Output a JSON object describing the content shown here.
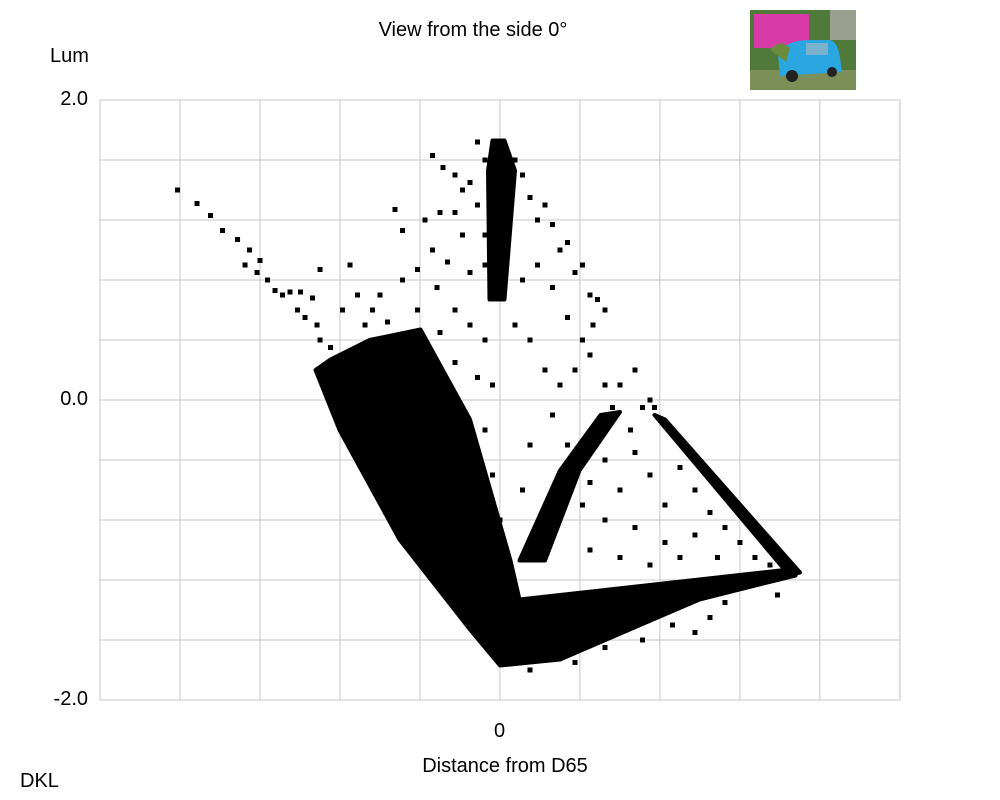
{
  "chart_data": {
    "type": "scatter",
    "title": "View from the side 0°",
    "ylabel": "Lum",
    "xlabel": "Distance from D65",
    "corner_label": "DKL",
    "xlim": [
      -2.667,
      2.667
    ],
    "ylim": [
      -2.0,
      2.0
    ],
    "x_grid_step": 0.5333,
    "y_grid_step": 0.4,
    "grid": true,
    "x_ticks": [
      {
        "value": 0,
        "label": "0"
      }
    ],
    "y_ticks": [
      {
        "value": 2.0,
        "label": "2.0"
      },
      {
        "value": 0.0,
        "label": "0.0"
      },
      {
        "value": -2.0,
        "label": "-2.0"
      }
    ],
    "marker_color": "#000000",
    "grid_color": "#c8c8c8",
    "dense_regions": [
      [
        [
          -1.13,
          0.27
        ],
        [
          -0.87,
          0.4
        ],
        [
          -0.53,
          0.47
        ],
        [
          -0.2,
          -0.13
        ],
        [
          0.07,
          -1.07
        ],
        [
          0.13,
          -1.33
        ],
        [
          0.67,
          -1.27
        ],
        [
          1.93,
          -1.13
        ],
        [
          1.97,
          -1.17
        ],
        [
          1.33,
          -1.33
        ],
        [
          0.4,
          -1.73
        ],
        [
          0,
          -1.77
        ],
        [
          -0.2,
          -1.53
        ],
        [
          -0.67,
          -0.93
        ],
        [
          -1.07,
          -0.2
        ],
        [
          -1.23,
          0.2
        ]
      ],
      [
        [
          0.13,
          -1.07
        ],
        [
          0.4,
          -0.47
        ],
        [
          0.67,
          -0.1
        ],
        [
          0.8,
          -0.08
        ],
        [
          0.53,
          -0.47
        ],
        [
          0.3,
          -1.07
        ]
      ],
      [
        [
          1.03,
          -0.1
        ],
        [
          1.1,
          -0.13
        ],
        [
          2.0,
          -1.15
        ],
        [
          1.93,
          -1.17
        ]
      ],
      [
        [
          -0.05,
          1.73
        ],
        [
          0.03,
          1.73
        ],
        [
          0.1,
          1.53
        ],
        [
          0.03,
          0.67
        ],
        [
          -0.07,
          0.67
        ],
        [
          -0.08,
          1.53
        ]
      ]
    ],
    "points": [
      [
        -2.15,
        1.4
      ],
      [
        -2.02,
        1.31
      ],
      [
        -1.93,
        1.23
      ],
      [
        -1.85,
        1.13
      ],
      [
        -1.75,
        1.07
      ],
      [
        -1.67,
        1.0
      ],
      [
        -1.6,
        0.93
      ],
      [
        -1.7,
        0.9
      ],
      [
        -1.55,
        0.8
      ],
      [
        -1.5,
        0.73
      ],
      [
        -1.45,
        0.7
      ],
      [
        -1.33,
        0.72
      ],
      [
        -1.35,
        0.6
      ],
      [
        -1.3,
        0.55
      ],
      [
        -1.22,
        0.5
      ],
      [
        -1.2,
        0.4
      ],
      [
        -1.13,
        0.35
      ],
      [
        -1.05,
        0.3
      ],
      [
        -1.25,
        0.68
      ],
      [
        -1.4,
        0.72
      ],
      [
        -1.62,
        0.85
      ],
      [
        -1.2,
        0.87
      ],
      [
        -1.0,
        0.9
      ],
      [
        -0.8,
        0.7
      ],
      [
        -0.75,
        0.52
      ],
      [
        -0.9,
        0.5
      ],
      [
        -0.65,
        0.8
      ],
      [
        -0.55,
        0.87
      ],
      [
        -0.45,
        1.0
      ],
      [
        -0.35,
        0.92
      ],
      [
        -0.25,
        1.1
      ],
      [
        -0.2,
        0.85
      ],
      [
        -0.15,
        1.3
      ],
      [
        -0.3,
        1.25
      ],
      [
        -0.4,
        1.25
      ],
      [
        -0.7,
        1.27
      ],
      [
        -0.65,
        1.13
      ],
      [
        -0.5,
        1.2
      ],
      [
        -0.55,
        0.6
      ],
      [
        -0.42,
        0.75
      ],
      [
        -0.3,
        0.6
      ],
      [
        -0.2,
        0.5
      ],
      [
        -0.1,
        0.4
      ],
      [
        -0.1,
        0.9
      ],
      [
        -0.2,
        1.45
      ],
      [
        -0.3,
        1.5
      ],
      [
        -0.1,
        1.6
      ],
      [
        -0.05,
        1.7
      ],
      [
        -0.15,
        1.72
      ],
      [
        -0.45,
        1.63
      ],
      [
        -0.38,
        1.55
      ],
      [
        -0.25,
        1.4
      ],
      [
        -0.1,
        1.1
      ],
      [
        -1.05,
        0.6
      ],
      [
        -0.95,
        0.7
      ],
      [
        -0.85,
        0.6
      ],
      [
        -0.6,
        0.35
      ],
      [
        -0.4,
        0.45
      ],
      [
        -0.3,
        0.25
      ],
      [
        -0.15,
        0.15
      ],
      [
        -0.05,
        0.1
      ],
      [
        -0.1,
        -0.2
      ],
      [
        -0.05,
        -0.5
      ],
      [
        0.0,
        -0.8
      ],
      [
        0.1,
        1.6
      ],
      [
        0.15,
        1.5
      ],
      [
        0.2,
        1.35
      ],
      [
        0.25,
        1.2
      ],
      [
        0.3,
        1.3
      ],
      [
        0.35,
        1.17
      ],
      [
        0.4,
        1.0
      ],
      [
        0.45,
        1.05
      ],
      [
        0.5,
        0.85
      ],
      [
        0.55,
        0.9
      ],
      [
        0.6,
        0.7
      ],
      [
        0.65,
        0.67
      ],
      [
        0.7,
        0.6
      ],
      [
        0.62,
        0.5
      ],
      [
        0.55,
        0.4
      ],
      [
        0.45,
        0.55
      ],
      [
        0.35,
        0.75
      ],
      [
        0.25,
        0.9
      ],
      [
        0.15,
        0.8
      ],
      [
        0.1,
        0.5
      ],
      [
        0.2,
        0.4
      ],
      [
        0.3,
        0.2
      ],
      [
        0.4,
        0.1
      ],
      [
        0.5,
        0.2
      ],
      [
        0.6,
        0.3
      ],
      [
        0.7,
        0.1
      ],
      [
        0.8,
        0.1
      ],
      [
        0.9,
        0.2
      ],
      [
        0.87,
        -0.2
      ],
      [
        0.75,
        -0.05
      ],
      [
        0.45,
        -0.3
      ],
      [
        0.35,
        -0.1
      ],
      [
        0.2,
        -0.3
      ],
      [
        0.15,
        -0.6
      ],
      [
        0.95,
        -0.05
      ],
      [
        1.0,
        0.0
      ],
      [
        1.03,
        -0.05
      ],
      [
        0.9,
        -0.35
      ],
      [
        0.7,
        -0.4
      ],
      [
        0.8,
        -0.6
      ],
      [
        1.0,
        -0.5
      ],
      [
        1.2,
        -0.45
      ],
      [
        1.1,
        -0.7
      ],
      [
        1.3,
        -0.6
      ],
      [
        1.4,
        -0.75
      ],
      [
        1.5,
        -0.85
      ],
      [
        1.6,
        -0.95
      ],
      [
        1.3,
        -0.9
      ],
      [
        1.1,
        -0.95
      ],
      [
        0.9,
        -0.85
      ],
      [
        0.7,
        -0.8
      ],
      [
        0.6,
        -1.0
      ],
      [
        0.8,
        -1.05
      ],
      [
        1.0,
        -1.1
      ],
      [
        1.2,
        -1.05
      ],
      [
        1.45,
        -1.05
      ],
      [
        1.7,
        -1.05
      ],
      [
        1.8,
        -1.1
      ],
      [
        1.85,
        -1.3
      ],
      [
        1.5,
        -1.35
      ],
      [
        1.4,
        -1.45
      ],
      [
        1.3,
        -1.55
      ],
      [
        1.15,
        -1.5
      ],
      [
        0.95,
        -1.6
      ],
      [
        0.7,
        -1.65
      ],
      [
        0.5,
        -1.75
      ],
      [
        0.2,
        -1.8
      ],
      [
        0.45,
        -1.65
      ],
      [
        0.85,
        -1.45
      ],
      [
        0.55,
        -0.7
      ],
      [
        0.6,
        -0.55
      ]
    ]
  },
  "thumbnail": {
    "description_icon": "photo-thumbnail"
  }
}
